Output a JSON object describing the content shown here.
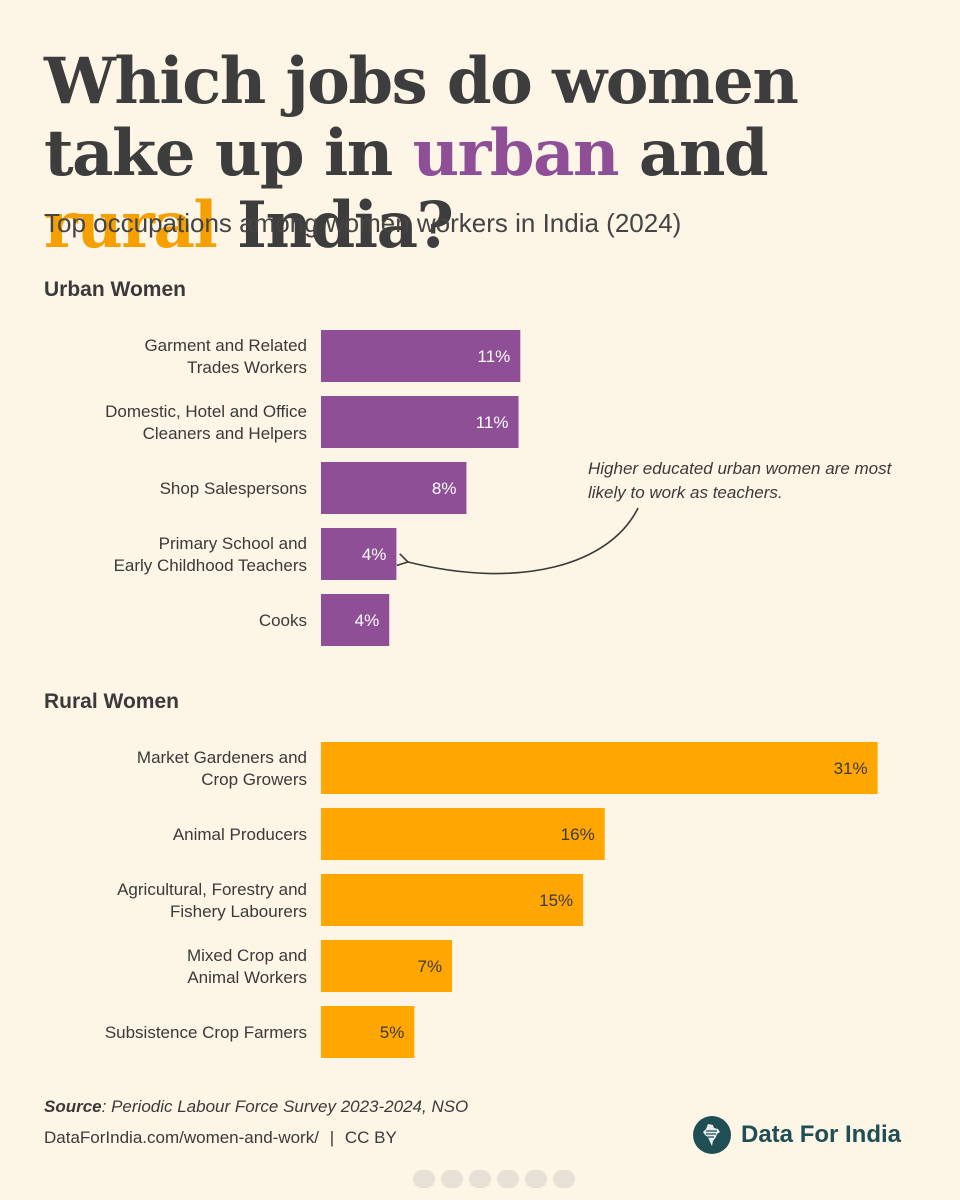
{
  "title": {
    "part1": "Which jobs do women take up in ",
    "urban": "urban",
    "part2": " and ",
    "rural": "rural",
    "part3": " India?"
  },
  "subtitle": "Top occupations among women workers in India (2024)",
  "colors": {
    "urban": "#8e4f97",
    "rural": "#ffa600",
    "text": "#3a3a3a",
    "background": "#fdf5e6"
  },
  "chart_data": [
    {
      "type": "bar",
      "orientation": "horizontal",
      "title": "Urban Women",
      "categories": [
        [
          "Garment and Related",
          "Trades Workers"
        ],
        [
          "Domestic, Hotel and Office",
          "Cleaners and Helpers"
        ],
        [
          "Shop Salespersons"
        ],
        [
          "Primary School and",
          "Early Childhood Teachers"
        ],
        [
          "Cooks"
        ]
      ],
      "values": [
        11.1,
        11.0,
        8.1,
        4.2,
        3.8
      ],
      "value_labels": [
        "11%",
        "11%",
        "8%",
        "4%",
        "4%"
      ],
      "xlim": [
        0,
        31.3
      ],
      "annotation": "Higher educated urban women are most likely to work as teachers.",
      "annotation_target": "Primary School and Early Childhood Teachers"
    },
    {
      "type": "bar",
      "orientation": "horizontal",
      "title": "Rural Women",
      "categories": [
        [
          "Market Gardeners and",
          "Crop Growers"
        ],
        [
          "Animal Producers"
        ],
        [
          "Agricultural, Forestry and",
          "Fishery Labourers"
        ],
        [
          "Mixed Crop and",
          "Animal Workers"
        ],
        [
          "Subsistence Crop Farmers"
        ]
      ],
      "values": [
        31.0,
        15.8,
        14.6,
        7.3,
        5.2
      ],
      "value_labels": [
        "31%",
        "16%",
        "15%",
        "7%",
        "5%"
      ],
      "xlim": [
        0,
        31.3
      ]
    }
  ],
  "source": {
    "label": "Source",
    "text": ": Periodic Labour Force Survey 2023-2024, NSO"
  },
  "footer": {
    "link": "DataForIndia.com/women-and-work/",
    "separator": "|",
    "license": "CC BY"
  },
  "brand": {
    "name": "Data For India",
    "icon": "india-map-icon"
  }
}
